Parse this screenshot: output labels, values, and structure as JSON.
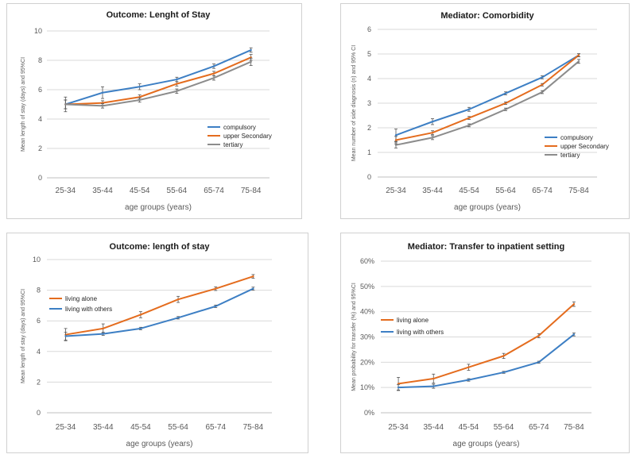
{
  "colors": {
    "blue": "#3d7fc4",
    "orange": "#e46c1e",
    "gray": "#8c8c8c",
    "grid": "#d9d9d9",
    "axis_text": "#595959"
  },
  "chart_data": [
    {
      "type": "line",
      "title": "Outcome: Lenght of Stay",
      "xlabel": "age groups (years)",
      "ylabel": "Mean length of stay (days) and 95%CI",
      "categories": [
        "25-34",
        "35-44",
        "45-54",
        "55-64",
        "65-74",
        "75-84"
      ],
      "ylim": [
        0,
        10
      ],
      "yticks": [
        "0",
        "2",
        "4",
        "6",
        "8",
        "10"
      ],
      "yticks_values": [
        0,
        2,
        4,
        6,
        8,
        10
      ],
      "legend_position": "bottom-right",
      "series": [
        {
          "name": "compulsory",
          "color": "#3d7fc4",
          "values": [
            5.0,
            5.8,
            6.2,
            6.7,
            7.6,
            8.7
          ],
          "err": [
            0.5,
            0.4,
            0.2,
            0.15,
            0.15,
            0.15
          ]
        },
        {
          "name": "upper Secondary",
          "color": "#e46c1e",
          "values": [
            5.0,
            5.1,
            5.5,
            6.4,
            7.1,
            8.2
          ],
          "err": [
            0.3,
            0.15,
            0.15,
            0.15,
            0.15,
            0.2
          ]
        },
        {
          "name": "tertiary",
          "color": "#8c8c8c",
          "values": [
            5.0,
            4.9,
            5.3,
            5.9,
            6.8,
            7.9
          ],
          "err": [
            0.3,
            0.15,
            0.15,
            0.15,
            0.15,
            0.25
          ]
        }
      ]
    },
    {
      "type": "line",
      "title": "Mediator: Comorbidity",
      "xlabel": "age groups (years)",
      "ylabel": "Mean number of side diagnosis (n) and 95% CI",
      "categories": [
        "25-34",
        "35-44",
        "45-54",
        "55-64",
        "65-74",
        "75-84"
      ],
      "ylim": [
        0,
        6
      ],
      "yticks": [
        "0",
        "1",
        "2",
        "3",
        "4",
        "5",
        "6"
      ],
      "yticks_values": [
        0,
        1,
        2,
        3,
        4,
        5,
        6
      ],
      "legend_position": "bottom-right",
      "series": [
        {
          "name": "compulsory",
          "color": "#3d7fc4",
          "values": [
            1.7,
            2.25,
            2.75,
            3.4,
            4.05,
            4.95
          ],
          "err": [
            0.25,
            0.12,
            0.08,
            0.06,
            0.06,
            0.06
          ]
        },
        {
          "name": "upper Secondary",
          "color": "#e46c1e",
          "values": [
            1.5,
            1.8,
            2.4,
            3.0,
            3.75,
            4.95
          ],
          "err": [
            0.15,
            0.08,
            0.06,
            0.05,
            0.05,
            0.06
          ]
        },
        {
          "name": "tertiary",
          "color": "#8c8c8c",
          "values": [
            1.3,
            1.6,
            2.1,
            2.75,
            3.45,
            4.7
          ],
          "err": [
            0.12,
            0.08,
            0.06,
            0.05,
            0.06,
            0.08
          ]
        }
      ]
    },
    {
      "type": "line",
      "title": "Outcome: length of stay",
      "xlabel": "age groups (years)",
      "ylabel": "Mean length of stay (days) and 95%CI",
      "categories": [
        "25-34",
        "35-44",
        "45-54",
        "55-64",
        "65-74",
        "75-84"
      ],
      "ylim": [
        0,
        10
      ],
      "yticks": [
        "0",
        "2",
        "4",
        "6",
        "8",
        "10"
      ],
      "yticks_values": [
        0,
        2,
        4,
        6,
        8,
        10
      ],
      "legend_position": "top-left",
      "series": [
        {
          "name": "living alone",
          "color": "#e46c1e",
          "values": [
            5.1,
            5.5,
            6.4,
            7.4,
            8.1,
            8.9
          ],
          "err": [
            0.4,
            0.3,
            0.2,
            0.2,
            0.12,
            0.12
          ]
        },
        {
          "name": "living with others",
          "color": "#3d7fc4",
          "values": [
            5.0,
            5.15,
            5.5,
            6.2,
            6.95,
            8.1
          ],
          "err": [
            0.25,
            0.1,
            0.08,
            0.08,
            0.08,
            0.1
          ]
        }
      ]
    },
    {
      "type": "line",
      "title": "Mediator: Transfer to inpatient setting",
      "xlabel": "age groups (years)",
      "ylabel": "Mean probability for transfer (%) and 95%CI",
      "categories": [
        "25-34",
        "35-44",
        "45-54",
        "55-64",
        "65-74",
        "75-84"
      ],
      "ylim": [
        0,
        60
      ],
      "yticks": [
        "0%",
        "10%",
        "20%",
        "30%",
        "40%",
        "50%",
        "60%"
      ],
      "yticks_values": [
        0,
        10,
        20,
        30,
        40,
        50,
        60
      ],
      "legend_position": "top-left",
      "series": [
        {
          "name": "living alone",
          "color": "#e46c1e",
          "values": [
            11.5,
            13.5,
            18.0,
            22.5,
            30.5,
            43.0
          ],
          "err": [
            2.5,
            1.8,
            1.2,
            1.0,
            0.8,
            0.9
          ]
        },
        {
          "name": "living with others",
          "color": "#3d7fc4",
          "values": [
            10.0,
            10.5,
            13.0,
            16.0,
            20.0,
            31.0
          ],
          "err": [
            1.2,
            0.8,
            0.5,
            0.4,
            0.4,
            0.6
          ]
        }
      ]
    }
  ]
}
